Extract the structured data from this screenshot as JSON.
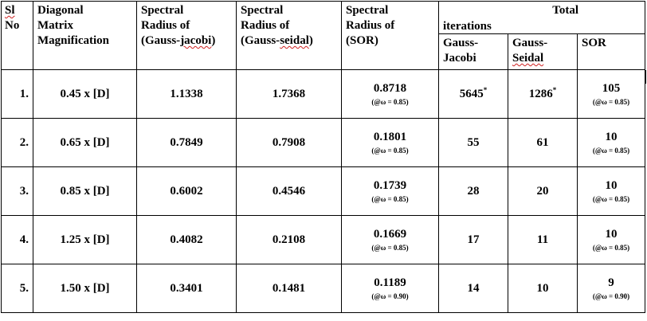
{
  "headers": {
    "sl_line1": "Sl",
    "sl_line2": "No",
    "diag_line1": "Diagonal",
    "diag_line2": "Matrix",
    "diag_line3": "Magnification",
    "gj_line1": "Spectral",
    "gj_line2": "Radius of",
    "gj_line3a": "(Gauss-",
    "gj_line3b": "jacobi",
    "gj_line3c": ")",
    "gs_line1": "Spectral",
    "gs_line2": "Radius of",
    "gs_line3a": "(Gauss-",
    "gs_line3b": "seidal",
    "gs_line3c": ")",
    "sor_line1": "Spectral",
    "sor_line2": "Radius of",
    "sor_line3": "(SOR)",
    "total": "Total",
    "iterations": "iterations",
    "sub_gj_line1": "Gauss-",
    "sub_gj_line2": "Jacobi",
    "sub_gs_line1": "Gauss-",
    "sub_gs_line2": "Seidal",
    "sub_sor": "SOR"
  },
  "rows": [
    {
      "sl": "1.",
      "mag": "0.45 x [D]",
      "rho_gj": "1.1338",
      "rho_gs": "1.7368",
      "rho_sor": "0.8718",
      "rho_sor_note": "(@ω = 0.85)",
      "it_gj": "5645",
      "it_gj_mark": "*",
      "it_gs": "1286",
      "it_gs_mark": "*",
      "it_sor": "105",
      "it_sor_note": "(@ω = 0.85)"
    },
    {
      "sl": "2.",
      "mag": "0.65 x [D]",
      "rho_gj": "0.7849",
      "rho_gs": "0.7908",
      "rho_sor": "0.1801",
      "rho_sor_note": "(@ω = 0.85)",
      "it_gj": "55",
      "it_gj_mark": "",
      "it_gs": "61",
      "it_gs_mark": "",
      "it_sor": "10",
      "it_sor_note": "(@ω = 0.85)"
    },
    {
      "sl": "3.",
      "mag": "0.85 x [D]",
      "rho_gj": "0.6002",
      "rho_gs": "0.4546",
      "rho_sor": "0.1739",
      "rho_sor_note": "(@ω = 0.85)",
      "it_gj": "28",
      "it_gj_mark": "",
      "it_gs": "20",
      "it_gs_mark": "",
      "it_sor": "10",
      "it_sor_note": "(@ω = 0.85)"
    },
    {
      "sl": "4.",
      "mag": "1.25 x [D]",
      "rho_gj": "0.4082",
      "rho_gs": "0.2108",
      "rho_sor": "0.1669",
      "rho_sor_note": "(@ω = 0.85)",
      "it_gj": "17",
      "it_gj_mark": "",
      "it_gs": "11",
      "it_gs_mark": "",
      "it_sor": "10",
      "it_sor_note": "(@ω = 0.85)"
    },
    {
      "sl": "5.",
      "mag": "1.50 x [D]",
      "rho_gj": "0.3401",
      "rho_gs": "0.1481",
      "rho_sor": "0.1189",
      "rho_sor_note": "(@ω = 0.90)",
      "it_gj": "14",
      "it_gj_mark": "",
      "it_gs": "10",
      "it_gs_mark": "",
      "it_sor": "9",
      "it_sor_note": "(@ω = 0.90)"
    }
  ]
}
